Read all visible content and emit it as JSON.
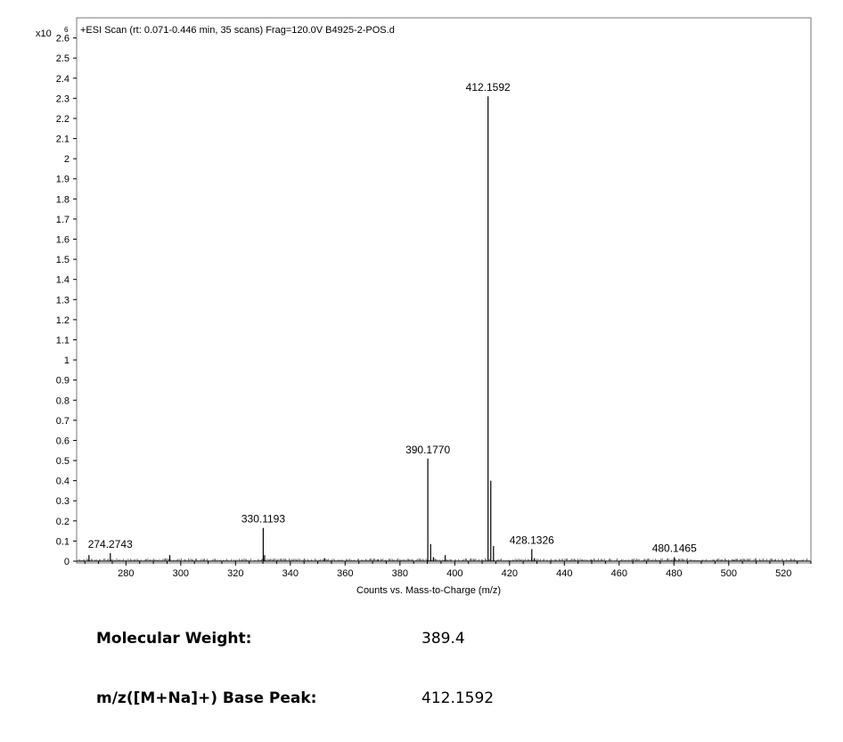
{
  "chart_data": {
    "type": "bar",
    "title": "+ESI Scan (rt: 0.071-0.446 min, 35 scans) Frag=120.0V B4925-2-POS.d",
    "xlabel": "Counts vs. Mass-to-Charge (m/z)",
    "y_exponent_label": "x10",
    "y_exponent_power": "6",
    "xlim": [
      262,
      530
    ],
    "ylim": [
      0,
      2.7
    ],
    "x_ticks": [
      "280",
      "300",
      "320",
      "340",
      "360",
      "380",
      "400",
      "420",
      "440",
      "460",
      "480",
      "500",
      "520"
    ],
    "y_ticks": [
      "0",
      "0.1",
      "0.2",
      "0.3",
      "0.4",
      "0.5",
      "0.6",
      "0.7",
      "0.8",
      "0.9",
      "1",
      "1.1",
      "1.2",
      "1.3",
      "1.4",
      "1.5",
      "1.6",
      "1.7",
      "1.8",
      "1.9",
      "2",
      "2.1",
      "2.2",
      "2.3",
      "2.4",
      "2.5",
      "2.6"
    ],
    "grid": false,
    "peaks": [
      {
        "mz": 266.5,
        "intensity": 0.03
      },
      {
        "mz": 274.3,
        "intensity": 0.04
      },
      {
        "mz": 296.0,
        "intensity": 0.03
      },
      {
        "mz": 330.1,
        "intensity": 0.165
      },
      {
        "mz": 330.6,
        "intensity": 0.03
      },
      {
        "mz": 352.5,
        "intensity": 0.015
      },
      {
        "mz": 372.0,
        "intensity": 0.01
      },
      {
        "mz": 390.18,
        "intensity": 0.51
      },
      {
        "mz": 391.2,
        "intensity": 0.085
      },
      {
        "mz": 392.2,
        "intensity": 0.02
      },
      {
        "mz": 396.5,
        "intensity": 0.03
      },
      {
        "mz": 412.16,
        "intensity": 2.31
      },
      {
        "mz": 413.16,
        "intensity": 0.4
      },
      {
        "mz": 414.15,
        "intensity": 0.075
      },
      {
        "mz": 428.13,
        "intensity": 0.06
      },
      {
        "mz": 429.1,
        "intensity": 0.015
      },
      {
        "mz": 450.0,
        "intensity": 0.008
      },
      {
        "mz": 480.15,
        "intensity": 0.02
      },
      {
        "mz": 502.0,
        "intensity": 0.006
      }
    ],
    "annotations": [
      {
        "mz": 274.2743,
        "intensity": 0.04,
        "label": "274.2743"
      },
      {
        "mz": 330.1193,
        "intensity": 0.165,
        "label": "330.1193"
      },
      {
        "mz": 390.177,
        "intensity": 0.51,
        "label": "390.1770"
      },
      {
        "mz": 412.1592,
        "intensity": 2.31,
        "label": "412.1592"
      },
      {
        "mz": 428.1326,
        "intensity": 0.06,
        "label": "428.1326"
      },
      {
        "mz": 480.1465,
        "intensity": 0.02,
        "label": "480.1465"
      }
    ]
  },
  "info": {
    "molecular_weight_label": "Molecular Weight:",
    "molecular_weight_value": "389.4",
    "base_peak_label": "m/z([M+Na]+) Base Peak:",
    "base_peak_value": "412.1592"
  }
}
